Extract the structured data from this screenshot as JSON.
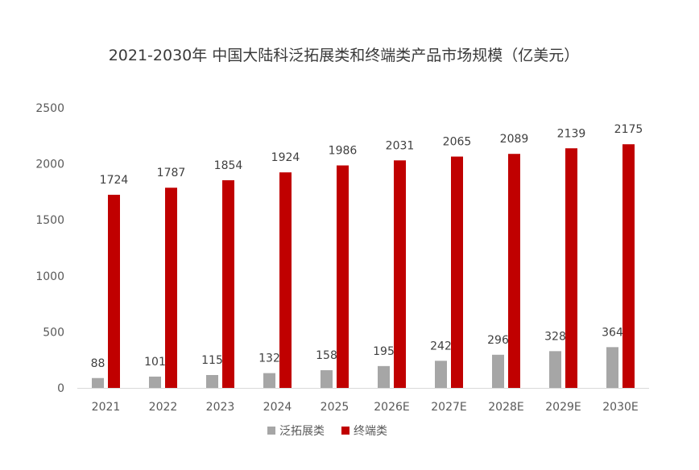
{
  "chart_data": {
    "type": "bar",
    "title": "2021-2030年 中国大陆科泛拓展类和终端类产品市场规模（亿美元）",
    "categories": [
      "2021",
      "2022",
      "2023",
      "2024",
      "2025",
      "2026E",
      "2027E",
      "2028E",
      "2029E",
      "2030E"
    ],
    "series": [
      {
        "name": "泛拓展类",
        "color": "#a6a6a6",
        "values": [
          88,
          101,
          115,
          132,
          158,
          195,
          242,
          296,
          328,
          364
        ]
      },
      {
        "name": "终端类",
        "color": "#c00000",
        "values": [
          1724,
          1787,
          1854,
          1924,
          1986,
          2031,
          2065,
          2089,
          2139,
          2175
        ]
      }
    ],
    "ylim": [
      0,
      2500
    ],
    "yticks": [
      0,
      500,
      1000,
      1500,
      2000,
      2500
    ],
    "grid": false,
    "legend_position": "bottom",
    "xlabel": "",
    "ylabel": ""
  }
}
